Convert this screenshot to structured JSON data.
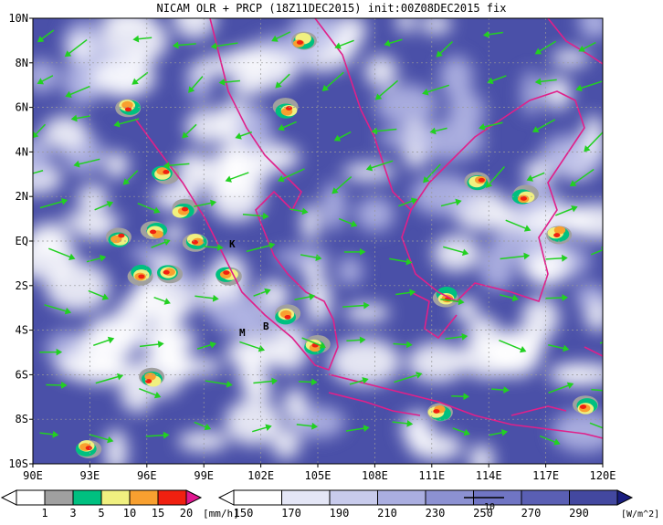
{
  "header": {
    "title": "NICAM OLR + PRCP (18Z11DEC2015) init:00Z08DEC2015 fix"
  },
  "map": {
    "lat_labels": [
      "10N",
      "8N",
      "6N",
      "4N",
      "2N",
      "EQ",
      "2S",
      "4S",
      "6S",
      "8S",
      "10S"
    ],
    "lon_labels": [
      "90E",
      "93E",
      "96E",
      "99E",
      "102E",
      "105E",
      "108E",
      "111E",
      "114E",
      "117E",
      "120E"
    ],
    "stations": [
      "K",
      "M",
      "B"
    ]
  },
  "legends": {
    "precip": {
      "labels": [
        "1",
        "3",
        "5",
        "10",
        "15",
        "20"
      ],
      "unit": "[mm/h]"
    },
    "olr": {
      "labels": [
        "150",
        "170",
        "190",
        "210",
        "230",
        "250",
        "270",
        "290"
      ],
      "unit": "[W/m^2]",
      "vector_reference": "10"
    }
  }
}
